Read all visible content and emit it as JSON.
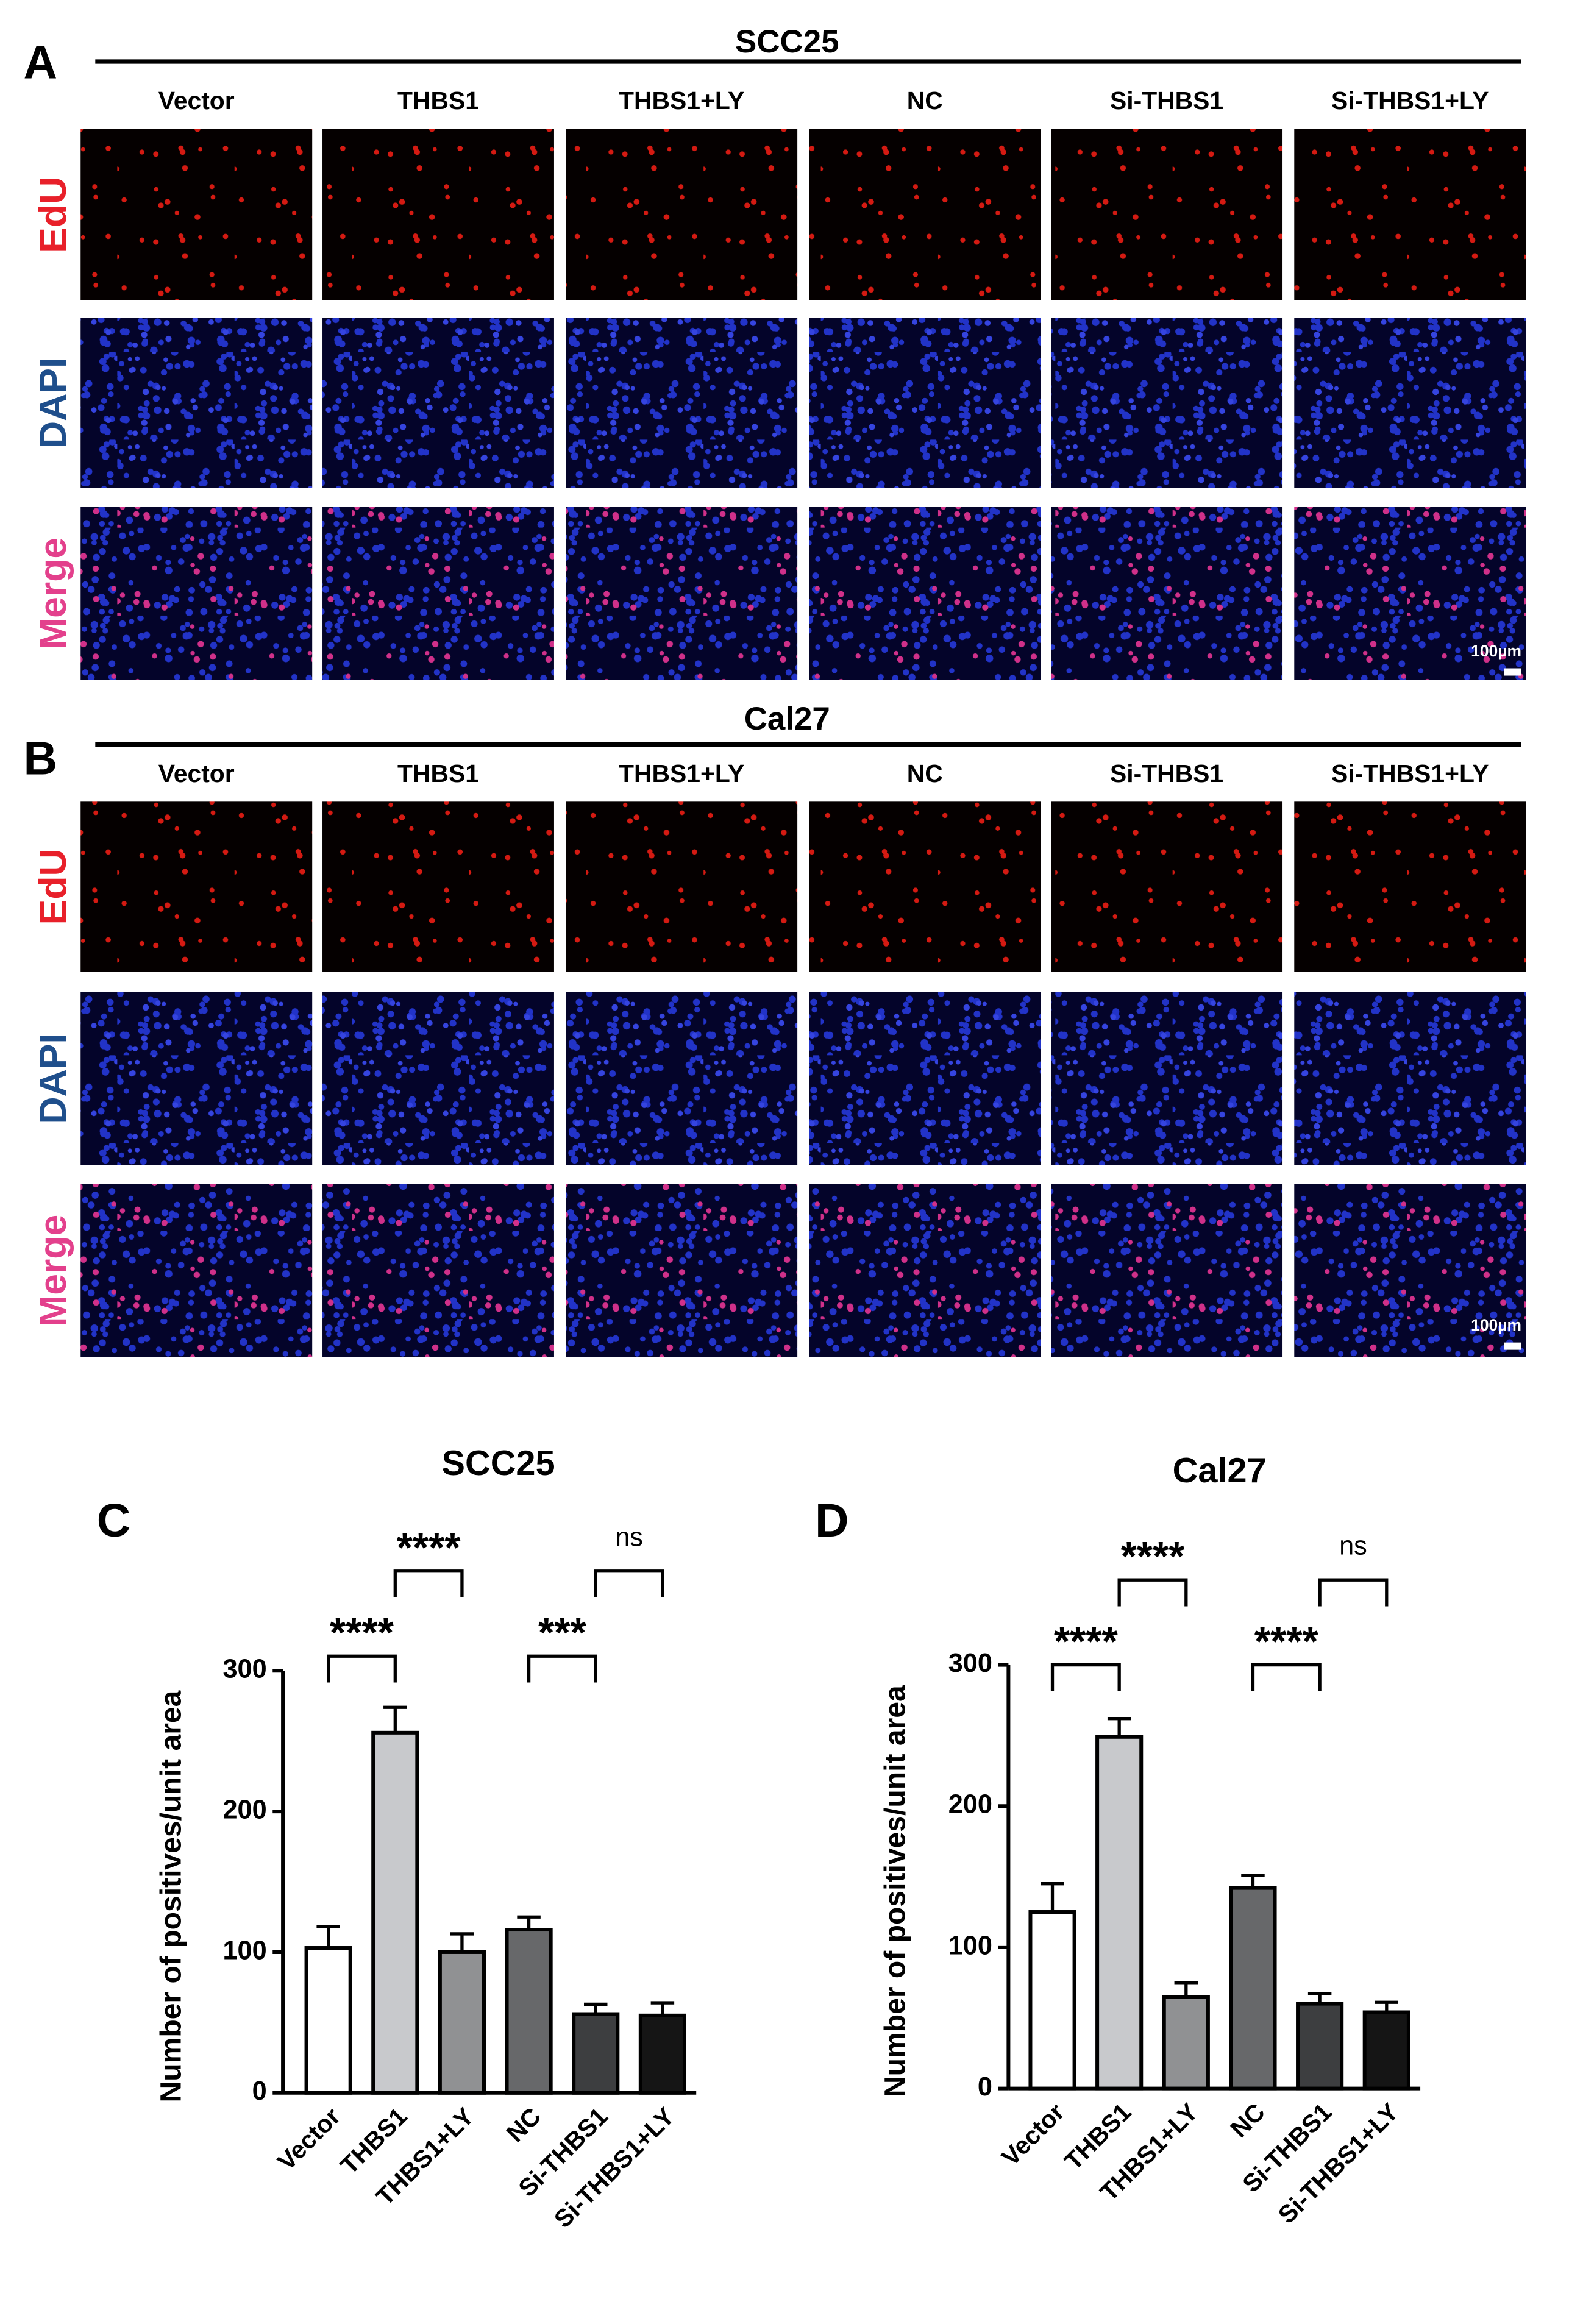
{
  "figure": {
    "panels": [
      {
        "label": "A",
        "title": "SCC25",
        "columns": [
          "Vector",
          "THBS1",
          "THBS1+LY",
          "NC",
          "Si-THBS1",
          "Si-THBS1+LY"
        ],
        "rows": [
          "EdU",
          "DAPI",
          "Merge"
        ],
        "scale_bar": "100µm"
      },
      {
        "label": "B",
        "title": "Cal27",
        "columns": [
          "Vector",
          "THBS1",
          "THBS1+LY",
          "NC",
          "Si-THBS1",
          "Si-THBS1+LY"
        ],
        "rows": [
          "EdU",
          "DAPI",
          "Merge"
        ],
        "scale_bar": "100µm"
      }
    ]
  },
  "chart_data": [
    {
      "type": "bar",
      "label": "C",
      "title": "SCC25",
      "y_label": "Number of positives/unit area",
      "categories": [
        "Vector",
        "THBS1",
        "THBS1+LY",
        "NC",
        "Si-THBS1",
        "Si-THBS1+LY"
      ],
      "values": [
        103,
        256,
        100,
        116,
        56,
        55
      ],
      "errors": [
        15,
        18,
        13,
        9,
        7,
        9
      ],
      "colors": [
        "#ffffff",
        "#c8c9cc",
        "#909193",
        "#67686a",
        "#3d3e40",
        "#151515"
      ],
      "ylim": [
        0,
        300
      ],
      "yticks": [
        0,
        100,
        200,
        300
      ],
      "significance": [
        {
          "between": [
            "Vector",
            "THBS1"
          ],
          "label": "****"
        },
        {
          "between": [
            "THBS1",
            "THBS1+LY"
          ],
          "label": "****"
        },
        {
          "between": [
            "NC",
            "Si-THBS1"
          ],
          "label": "***"
        },
        {
          "between": [
            "Si-THBS1",
            "Si-THBS1+LY"
          ],
          "label": "ns"
        }
      ]
    },
    {
      "type": "bar",
      "label": "D",
      "title": "Cal27",
      "y_label": "Number of positives/unit area",
      "categories": [
        "Vector",
        "THBS1",
        "THBS1+LY",
        "NC",
        "Si-THBS1",
        "Si-THBS1+LY"
      ],
      "values": [
        125,
        249,
        65,
        142,
        60,
        54
      ],
      "errors": [
        20,
        13,
        10,
        9,
        7,
        7
      ],
      "colors": [
        "#ffffff",
        "#c8c9cc",
        "#909193",
        "#67686a",
        "#3d3e40",
        "#151515"
      ],
      "ylim": [
        0,
        300
      ],
      "yticks": [
        0,
        100,
        200,
        300
      ],
      "significance": [
        {
          "between": [
            "Vector",
            "THBS1"
          ],
          "label": "****"
        },
        {
          "between": [
            "THBS1",
            "THBS1+LY"
          ],
          "label": "****"
        },
        {
          "between": [
            "NC",
            "Si-THBS1"
          ],
          "label": "****"
        },
        {
          "between": [
            "Si-THBS1",
            "Si-THBS1+LY"
          ],
          "label": "ns"
        }
      ]
    }
  ]
}
